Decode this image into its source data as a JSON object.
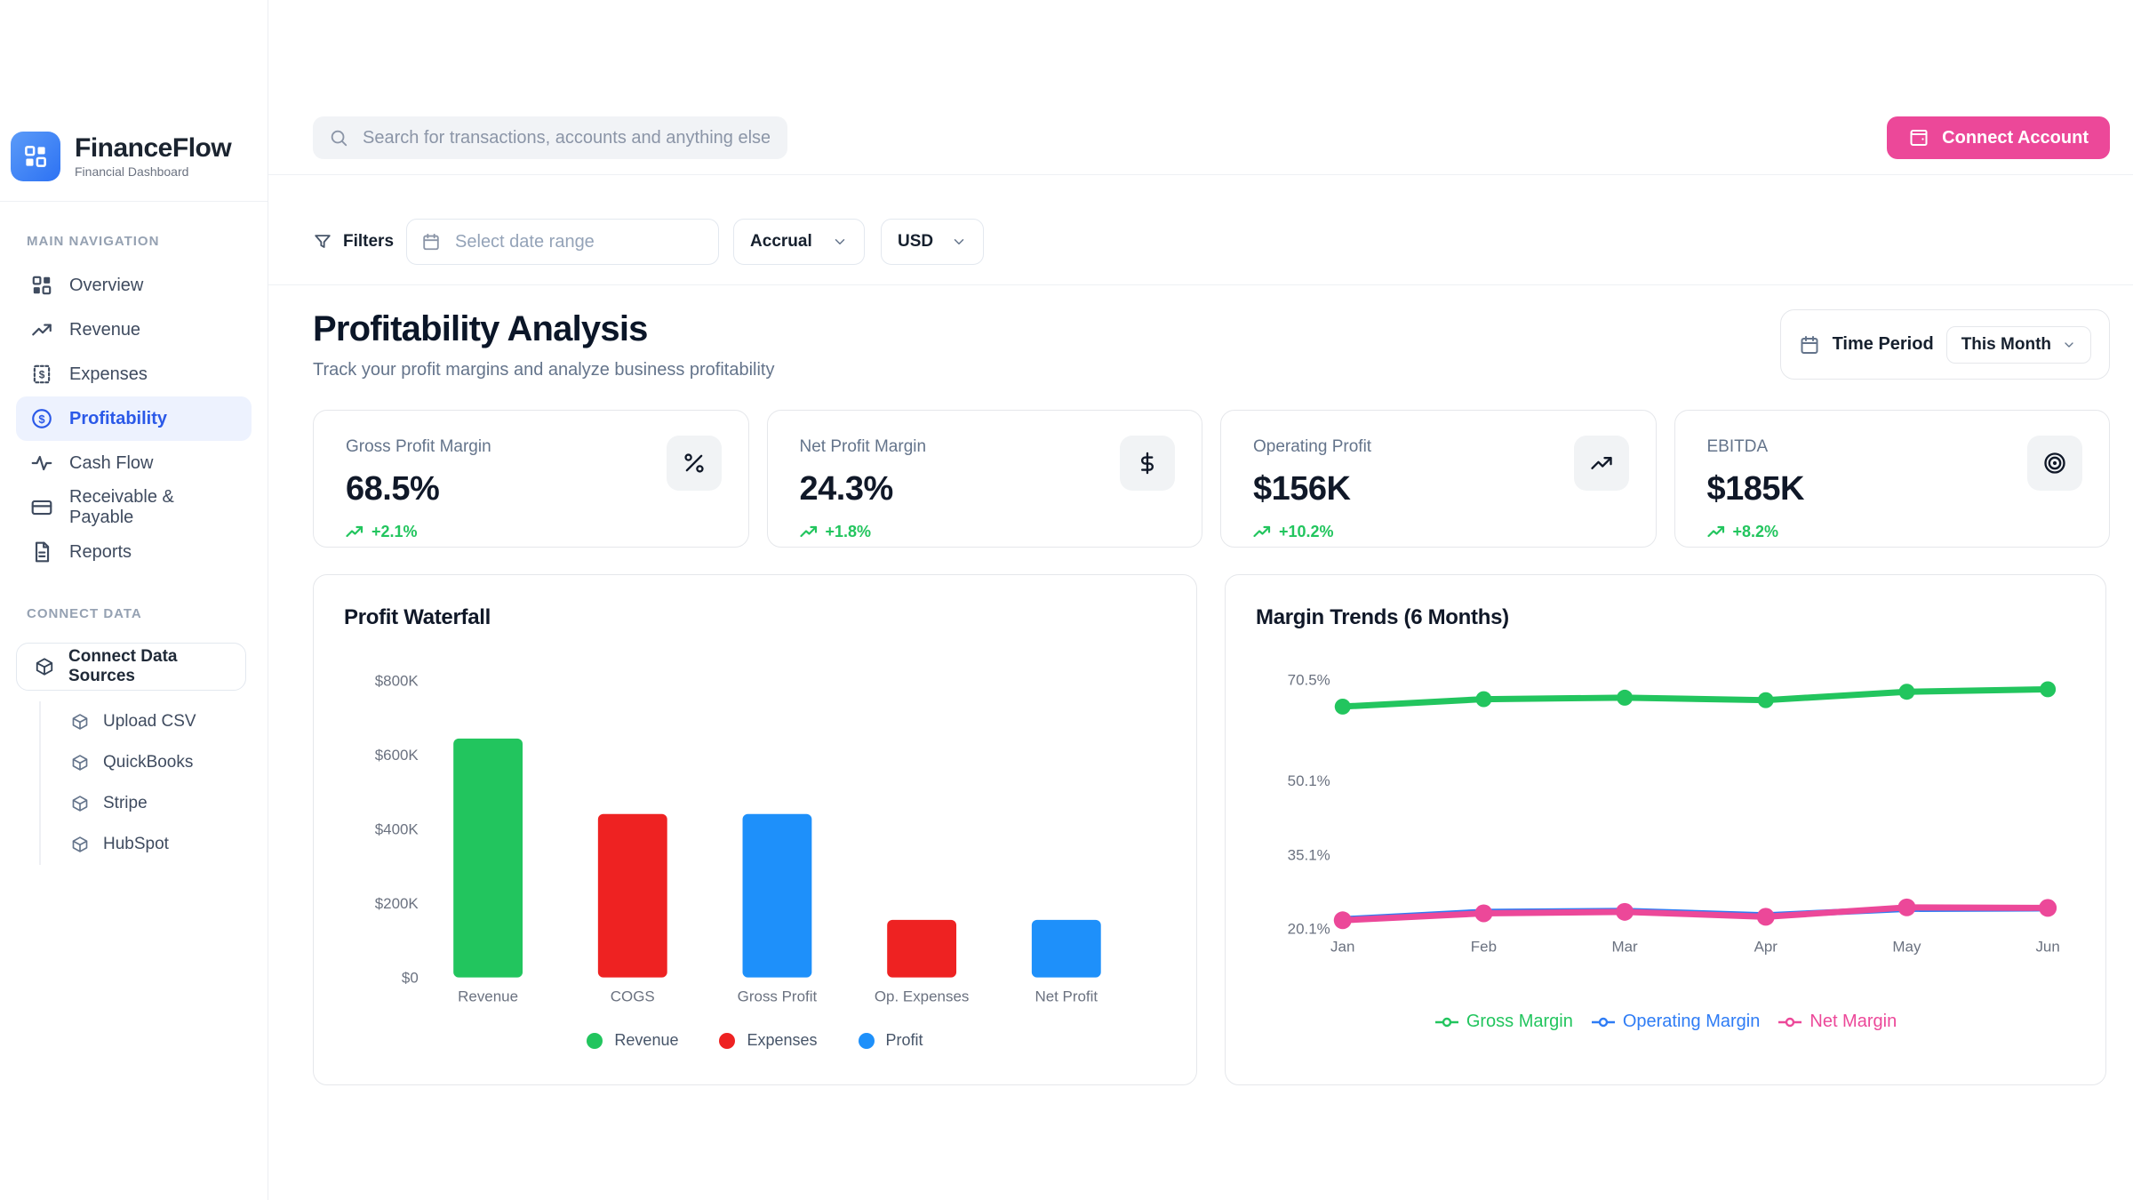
{
  "brand": {
    "name": "FinanceFlow",
    "subtitle": "Financial Dashboard"
  },
  "header": {
    "search_placeholder": "Search for transactions, accounts and anything else financial",
    "connect_button": "Connect Account"
  },
  "sidebar": {
    "nav_section": "MAIN NAVIGATION",
    "items": [
      {
        "label": "Overview",
        "icon": "grid-icon",
        "active": false
      },
      {
        "label": "Revenue",
        "icon": "trending-up-icon",
        "active": false
      },
      {
        "label": "Expenses",
        "icon": "receipt-icon",
        "active": false
      },
      {
        "label": "Profitability",
        "icon": "dollar-circle-icon",
        "active": true
      },
      {
        "label": "Cash Flow",
        "icon": "activity-icon",
        "active": false
      },
      {
        "label": "Receivable & Payable",
        "icon": "credit-card-icon",
        "active": false
      },
      {
        "label": "Reports",
        "icon": "file-text-icon",
        "active": false
      }
    ],
    "connect_section": "CONNECT DATA",
    "connect_button": "Connect Data Sources",
    "connect_items": [
      {
        "label": "Upload CSV",
        "icon": "cube-icon"
      },
      {
        "label": "QuickBooks",
        "icon": "cube-icon"
      },
      {
        "label": "Stripe",
        "icon": "cube-icon"
      },
      {
        "label": "HubSpot",
        "icon": "cube-icon"
      }
    ]
  },
  "filters": {
    "label": "Filters",
    "date_placeholder": "Select date range",
    "basis": "Accrual",
    "currency": "USD"
  },
  "page": {
    "title": "Profitability Analysis",
    "subtitle": "Track your profit margins and analyze business profitability",
    "time_period_label": "Time Period",
    "time_period_value": "This Month"
  },
  "kpis": [
    {
      "label": "Gross Profit Margin",
      "value": "68.5%",
      "delta": "+2.1%",
      "icon": "percent-icon"
    },
    {
      "label": "Net Profit Margin",
      "value": "24.3%",
      "delta": "+1.8%",
      "icon": "dollar-icon"
    },
    {
      "label": "Operating Profit",
      "value": "$156K",
      "delta": "+10.2%",
      "icon": "trending-up-icon"
    },
    {
      "label": "EBITDA",
      "value": "$185K",
      "delta": "+8.2%",
      "icon": "target-icon"
    }
  ],
  "colors": {
    "accent_blue": "#2b59e8",
    "pink": "#ec4899",
    "green": "#22c55e",
    "red": "#ee2222",
    "blue": "#1e90fa",
    "line_blue": "#2e7cf5",
    "text_muted": "#6b7280",
    "border": "#e5e7eb"
  },
  "chart_data": [
    {
      "type": "bar",
      "title": "Profit Waterfall",
      "categories": [
        "Revenue",
        "COGS",
        "Gross Profit",
        "Op. Expenses",
        "Net Profit"
      ],
      "values": [
        643000,
        440000,
        440000,
        155000,
        155000
      ],
      "bar_colors": [
        "green",
        "red",
        "blue",
        "red",
        "blue"
      ],
      "ylim": [
        0,
        800000
      ],
      "yticks": [
        "$800K",
        "$600K",
        "$400K",
        "$200K",
        "$0"
      ],
      "ytick_values": [
        800000,
        600000,
        400000,
        200000,
        0
      ],
      "grid": false,
      "legend_position": "bottom",
      "legend": [
        {
          "label": "Revenue",
          "color": "green"
        },
        {
          "label": "Expenses",
          "color": "red"
        },
        {
          "label": "Profit",
          "color": "blue"
        }
      ]
    },
    {
      "type": "line",
      "title": "Margin Trends (6 Months)",
      "x": [
        "Jan",
        "Feb",
        "Mar",
        "Apr",
        "May",
        "Jun"
      ],
      "series": [
        {
          "name": "Gross Margin",
          "color": "green",
          "values": [
            65.0,
            66.5,
            66.8,
            66.3,
            68.0,
            68.5
          ]
        },
        {
          "name": "Operating Margin",
          "color": "line_blue",
          "values": [
            22.0,
            23.5,
            23.7,
            22.8,
            24.1,
            24.2
          ]
        },
        {
          "name": "Net Margin",
          "color": "pink",
          "values": [
            21.8,
            23.2,
            23.5,
            22.5,
            24.4,
            24.3
          ]
        }
      ],
      "ylim": [
        20.1,
        70.5
      ],
      "yticks": [
        "70.5%",
        "50.1%",
        "35.1%",
        "20.1%"
      ],
      "ytick_values": [
        70.5,
        50.1,
        35.1,
        20.1
      ],
      "grid": false,
      "legend_position": "bottom"
    }
  ]
}
